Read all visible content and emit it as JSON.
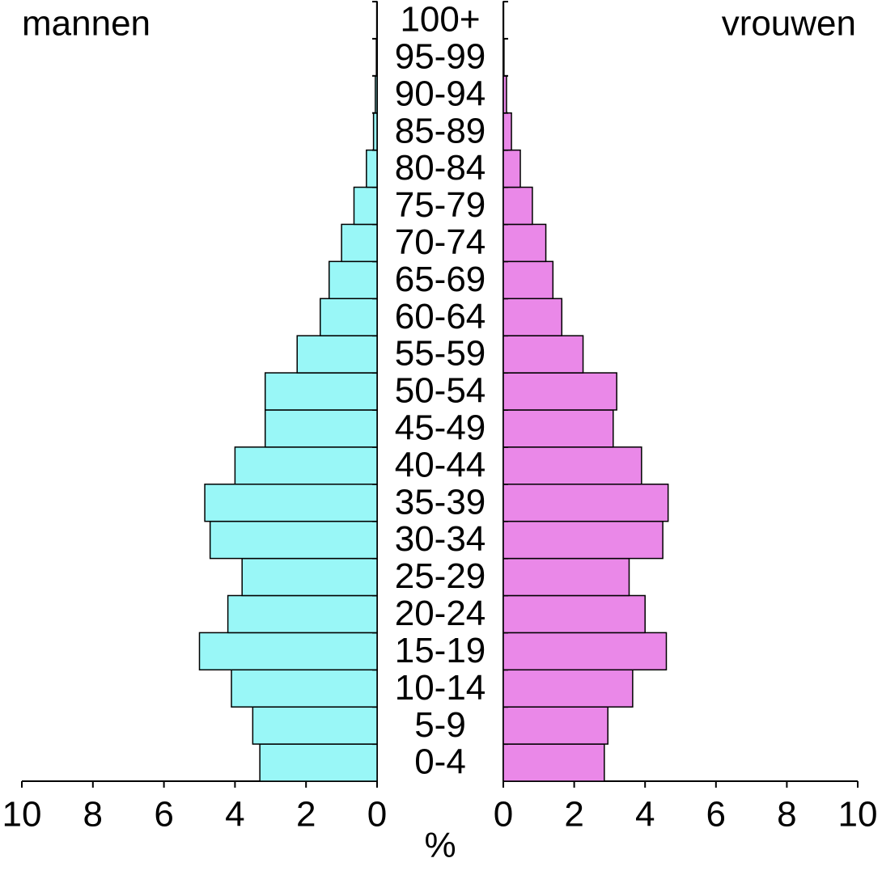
{
  "chart_data": {
    "type": "pyramid",
    "categories": [
      "0-4",
      "5-9",
      "10-14",
      "15-19",
      "20-24",
      "25-29",
      "30-34",
      "35-39",
      "40-44",
      "45-49",
      "50-54",
      "55-59",
      "60-64",
      "65-69",
      "70-74",
      "75-79",
      "80-84",
      "85-89",
      "90-94",
      "95-99",
      "100+"
    ],
    "series": [
      {
        "name": "mannen",
        "side": "left",
        "color": "#99f7f7",
        "values": [
          3.3,
          3.5,
          4.1,
          5.0,
          4.2,
          3.8,
          4.7,
          4.85,
          4.0,
          3.15,
          3.15,
          2.25,
          1.6,
          1.35,
          1.0,
          0.65,
          0.3,
          0.1,
          0.05,
          0.02,
          0.01
        ]
      },
      {
        "name": "vrouwen",
        "side": "right",
        "color": "#ea88e8",
        "values": [
          2.85,
          2.95,
          3.65,
          4.6,
          4.0,
          3.55,
          4.5,
          4.65,
          3.9,
          3.1,
          3.2,
          2.25,
          1.65,
          1.4,
          1.2,
          0.82,
          0.48,
          0.23,
          0.09,
          0.02,
          0.01
        ]
      }
    ],
    "x_label": "%",
    "xlim": [
      0,
      10
    ],
    "xticks": [
      0,
      2,
      4,
      6,
      8,
      10
    ]
  }
}
